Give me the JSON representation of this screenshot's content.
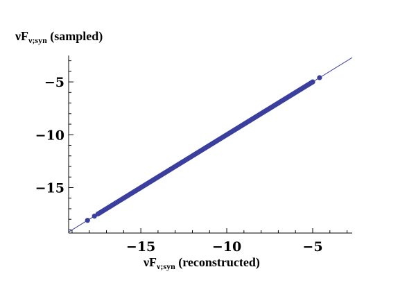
{
  "chart_data": {
    "type": "scatter",
    "xlabel": {
      "main": "νF",
      "sub": "ν;syn",
      "suffix": " (reconstructed)"
    },
    "ylabel": {
      "main": "νF",
      "sub": "ν;syn",
      "suffix": " (sampled)"
    },
    "xlim": [
      -19.2,
      -2.7
    ],
    "ylim": [
      -19.3,
      -2.5
    ],
    "x_ticks_major": [
      -15,
      -10,
      -5
    ],
    "y_ticks_major": [
      -15,
      -10,
      -5
    ],
    "x_tick_labels": [
      "−15",
      "−10",
      "−5"
    ],
    "y_tick_labels": [
      "−15",
      "−10",
      "−5"
    ],
    "grid": false,
    "reference_line": {
      "slope": 1,
      "intercept": 0,
      "color": "#3a3f9e"
    },
    "point_color": "#3a3f9e",
    "dense_band": {
      "x_start": -17.5,
      "x_end": -5.0
    },
    "outlier_points": [
      {
        "x": -18.1,
        "y": -18.1
      },
      {
        "x": -17.7,
        "y": -17.7
      },
      {
        "x": -5.0,
        "y": -5.0
      },
      {
        "x": -4.6,
        "y": -4.6
      }
    ]
  }
}
